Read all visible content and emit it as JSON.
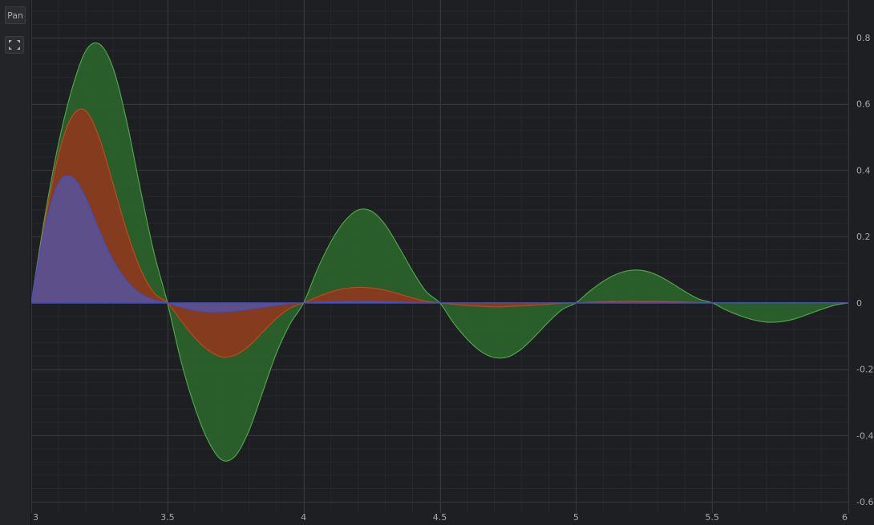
{
  "toolbar": {
    "pan_label": "Pan",
    "fit_icon": "fit-to-view-icon"
  },
  "colors": {
    "background": "#1e1f22",
    "grid_major": "#34363b",
    "grid_minor": "#26282c",
    "series_green_fill": "#2a622b",
    "series_green_line": "#4fa34b",
    "series_red_fill": "#8a3a1d",
    "series_red_line": "#c0471d",
    "series_blue_fill": "#5a5090",
    "series_blue_line": "#3c4fd6"
  },
  "chart_data": {
    "type": "area",
    "title": "",
    "xlabel": "",
    "ylabel": "",
    "xlim": [
      3,
      6
    ],
    "ylim": [
      -0.6,
      0.8
    ],
    "grid": true,
    "legend": "none",
    "x_ticks": [
      "3",
      "3.5",
      "4",
      "4.5",
      "5",
      "5.5",
      "6"
    ],
    "y_ticks": [
      "0.8",
      "0.6",
      "0.4",
      "0.2",
      "0",
      "-0.2",
      "-0.4",
      "-0.6"
    ],
    "x": [
      3.0,
      3.05,
      3.1,
      3.15,
      3.2,
      3.25,
      3.3,
      3.35,
      3.4,
      3.45,
      3.5,
      3.55,
      3.6,
      3.65,
      3.7,
      3.75,
      3.8,
      3.85,
      3.9,
      3.95,
      4.0,
      4.05,
      4.1,
      4.15,
      4.2,
      4.25,
      4.3,
      4.35,
      4.4,
      4.45,
      4.5,
      4.55,
      4.6,
      4.65,
      4.7,
      4.75,
      4.8,
      4.85,
      4.9,
      4.95,
      5.0,
      5.05,
      5.1,
      5.15,
      5.2,
      5.25,
      5.3,
      5.35,
      5.4,
      5.45,
      5.5,
      5.55,
      5.6,
      5.65,
      5.7,
      5.75,
      5.8,
      5.85,
      5.9,
      5.95,
      6.0
    ],
    "series": [
      {
        "values": [
          0,
          0.261,
          0.48,
          0.647,
          0.76,
          0.781,
          0.709,
          0.549,
          0.345,
          0.153,
          0,
          -0.176,
          -0.314,
          -0.417,
          -0.474,
          -0.461,
          -0.384,
          -0.268,
          -0.152,
          -0.064,
          0,
          0.1,
          0.184,
          0.246,
          0.28,
          0.276,
          0.235,
          0.168,
          0.096,
          0.034,
          0,
          -0.06,
          -0.109,
          -0.146,
          -0.165,
          -0.163,
          -0.139,
          -0.1,
          -0.057,
          -0.02,
          0,
          0.035,
          0.065,
          0.087,
          0.098,
          0.097,
          0.083,
          0.06,
          0.034,
          0.012,
          0,
          -0.021,
          -0.038,
          -0.051,
          -0.058,
          -0.057,
          -0.049,
          -0.035,
          -0.02,
          -0.007,
          0
        ]
      },
      {
        "values": [
          0,
          0.243,
          0.447,
          0.563,
          0.579,
          0.497,
          0.36,
          0.219,
          0.104,
          0.031,
          0,
          -0.054,
          -0.105,
          -0.143,
          -0.163,
          -0.157,
          -0.13,
          -0.088,
          -0.047,
          -0.016,
          0,
          0.018,
          0.033,
          0.043,
          0.047,
          0.045,
          0.038,
          0.027,
          0.015,
          0.005,
          0,
          -0.004,
          -0.008,
          -0.01,
          -0.012,
          -0.011,
          -0.009,
          -0.007,
          -0.004,
          -0.001,
          0,
          0.002,
          0.003,
          0.004,
          0.005,
          0.004,
          0.004,
          0.003,
          0.002,
          0.001,
          0,
          0,
          0,
          0,
          0,
          0,
          0,
          0,
          0,
          0,
          0
        ]
      },
      {
        "values": [
          0,
          0.226,
          0.36,
          0.379,
          0.315,
          0.216,
          0.128,
          0.066,
          0.028,
          0.008,
          0,
          -0.012,
          -0.022,
          -0.027,
          -0.027,
          -0.024,
          -0.019,
          -0.013,
          -0.007,
          -0.002,
          0,
          0.002,
          0.003,
          0.004,
          0.004,
          0.004,
          0.003,
          0.002,
          0.001,
          0,
          0,
          0,
          0,
          0,
          0,
          0,
          0,
          0,
          0,
          0,
          0,
          0,
          0,
          0,
          0,
          0,
          0,
          0,
          0,
          0,
          0,
          0,
          0,
          0,
          0,
          0,
          0,
          0,
          0,
          0,
          0
        ]
      }
    ]
  }
}
